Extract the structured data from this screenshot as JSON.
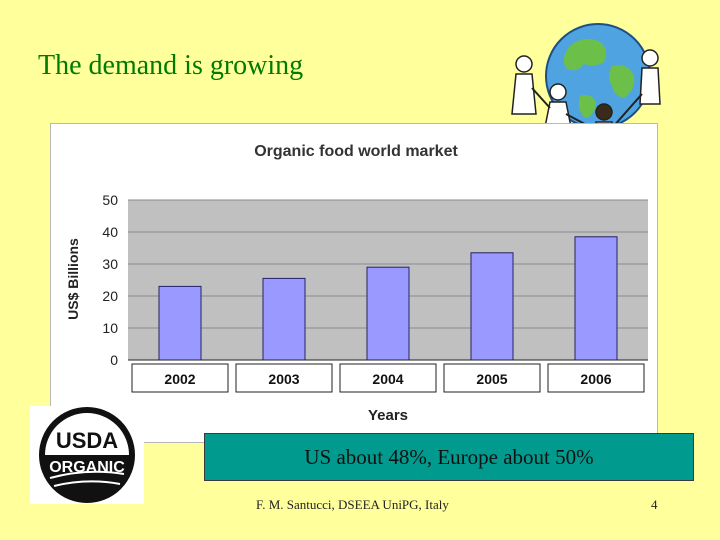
{
  "slide": {
    "title": "The demand is growing",
    "note": "US about 48%, Europe about 50%",
    "footer": "F. M. Santucci, DSEEA UniPG, Italy",
    "page_number": "4"
  },
  "logo": {
    "line1": "USDA",
    "line2": "ORGANIC"
  },
  "colors": {
    "title": "#007a00",
    "bar": "#9999ff",
    "plot_bg": "#c0c0c0",
    "note_bg": "#009a8e"
  },
  "chart_data": {
    "type": "bar",
    "title": "Organic food world market",
    "xlabel": "Years",
    "ylabel": "US$ Billions",
    "categories": [
      "2002",
      "2003",
      "2004",
      "2005",
      "2006"
    ],
    "values": [
      23,
      25.5,
      29,
      33.5,
      38.5
    ],
    "ylim": [
      0,
      50
    ],
    "yticks": [
      0,
      10,
      20,
      30,
      40,
      50
    ],
    "grid": true,
    "legend": "none"
  }
}
